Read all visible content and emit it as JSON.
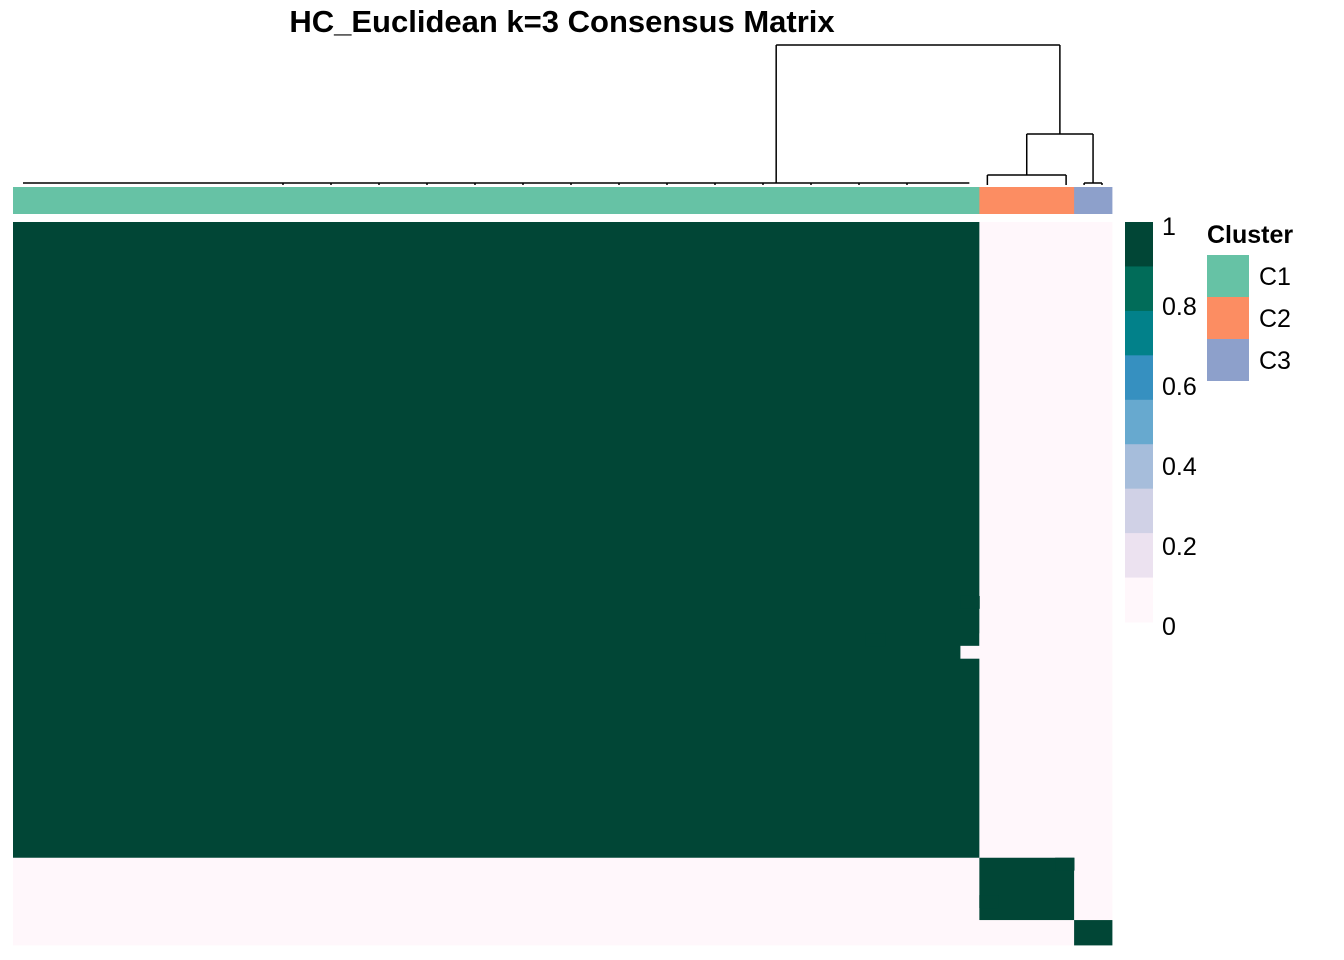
{
  "chart_data": {
    "type": "heatmap",
    "title": "HC_Euclidean k=3 Consensus Matrix",
    "xlabel": "",
    "ylabel": "",
    "value_range": [
      0,
      1
    ],
    "clusters": [
      {
        "name": "C1",
        "n_samples": 51,
        "color": "#66c2a5"
      },
      {
        "name": "C2",
        "n_samples": 5,
        "color": "#fc8d62"
      },
      {
        "name": "C3",
        "n_samples": 2,
        "color": "#8da0cb"
      }
    ],
    "within_cluster_consensus": 1.0,
    "between_cluster_consensus": 0.0,
    "notable_cells": [
      {
        "row": 30,
        "col": 50,
        "value": 0.9
      },
      {
        "row": 33,
        "col": 45,
        "value": 0.9
      },
      {
        "row": 34,
        "col": 50,
        "value": 0.05
      },
      {
        "row": 33,
        "col": 51,
        "value": 0.1
      },
      {
        "row": 51,
        "col": 55,
        "value": 0.9
      },
      {
        "row": 54,
        "col": 51,
        "value": 0.9
      }
    ],
    "colorbar": {
      "ticks": [
        "1",
        "0.8",
        "0.6",
        "0.4",
        "0.2",
        "0"
      ],
      "colors": [
        "#014636",
        "#016c59",
        "#02818a",
        "#3690c0",
        "#67a9cf",
        "#a6bddb",
        "#d0d1e6",
        "#ece2f0",
        "#fff7fb"
      ]
    },
    "legend": {
      "title": "Cluster",
      "items": [
        "C1",
        "C2",
        "C3"
      ],
      "position": "right"
    }
  }
}
